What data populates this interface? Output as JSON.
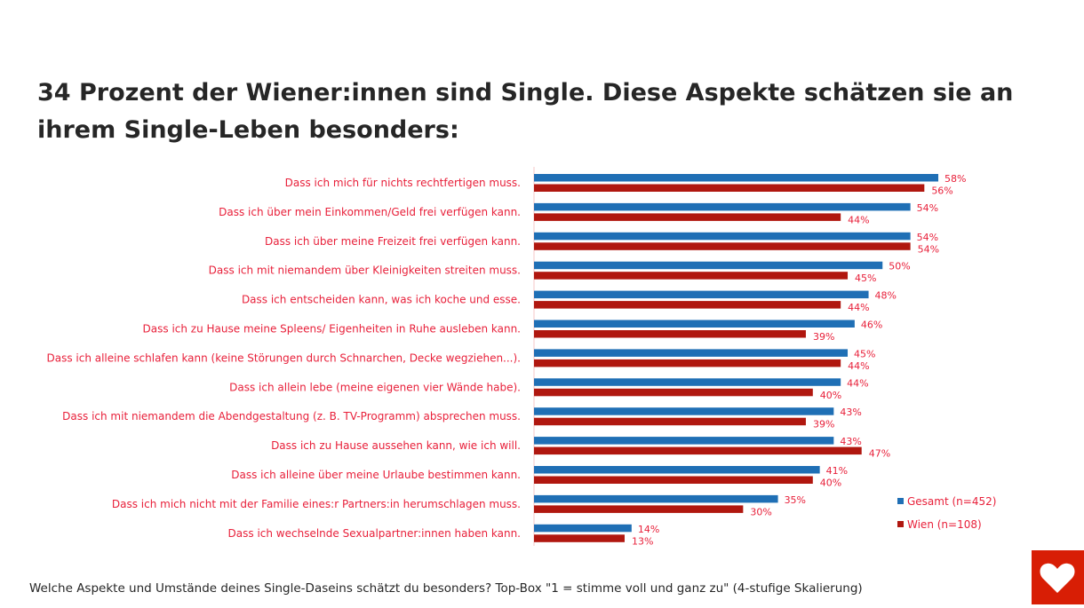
{
  "title": "34 Prozent der Wiener:innen sind Single. Diese Aspekte schätzen sie an ihrem Single-Leben besonders:",
  "footnote": "Welche Aspekte und Umstände deines Single-Daseins schätzt du besonders? Top-Box \"1 = stimme voll und ganz zu\" (4-stufige Skalierung)",
  "colors": {
    "gesamt": "#1f6fb5",
    "wien": "#b0170f",
    "label": "#e8203a",
    "logo": "#d81e05"
  },
  "logo_icon": "heart-icon",
  "chart_data": {
    "type": "bar",
    "orientation": "horizontal",
    "unit": "%",
    "xlim": [
      0,
      100
    ],
    "grid": false,
    "legend_placement": "right",
    "categories": [
      "Dass ich mich für nichts rechtfertigen muss.",
      "Dass ich über mein Einkommen/Geld frei verfügen kann.",
      "Dass ich über meine Freizeit frei verfügen kann.",
      "Dass ich mit niemandem über Kleinigkeiten streiten muss.",
      "Dass ich entscheiden kann, was ich koche und esse.",
      "Dass ich zu Hause meine Spleens/ Eigenheiten in Ruhe ausleben kann.",
      "Dass ich alleine schlafen kann (keine Störungen durch Schnarchen, Decke wegziehen...).",
      "Dass ich allein lebe (meine eigenen vier Wände habe).",
      "Dass ich mit niemandem die Abendgestaltung (z. B. TV-Programm) absprechen muss.",
      "Dass ich zu Hause aussehen kann, wie ich will.",
      "Dass ich alleine über meine Urlaube bestimmen kann.",
      "Dass ich mich nicht mit der Familie eines:r Partners:in herumschlagen muss.",
      "Dass ich wechselnde Sexualpartner:innen haben kann."
    ],
    "series": [
      {
        "name": "Gesamt (n=452)",
        "values": [
          58,
          54,
          54,
          50,
          48,
          46,
          45,
          44,
          43,
          43,
          41,
          35,
          14
        ]
      },
      {
        "name": "Wien (n=108)",
        "values": [
          56,
          44,
          54,
          45,
          44,
          39,
          44,
          40,
          39,
          47,
          40,
          30,
          13
        ]
      }
    ]
  }
}
